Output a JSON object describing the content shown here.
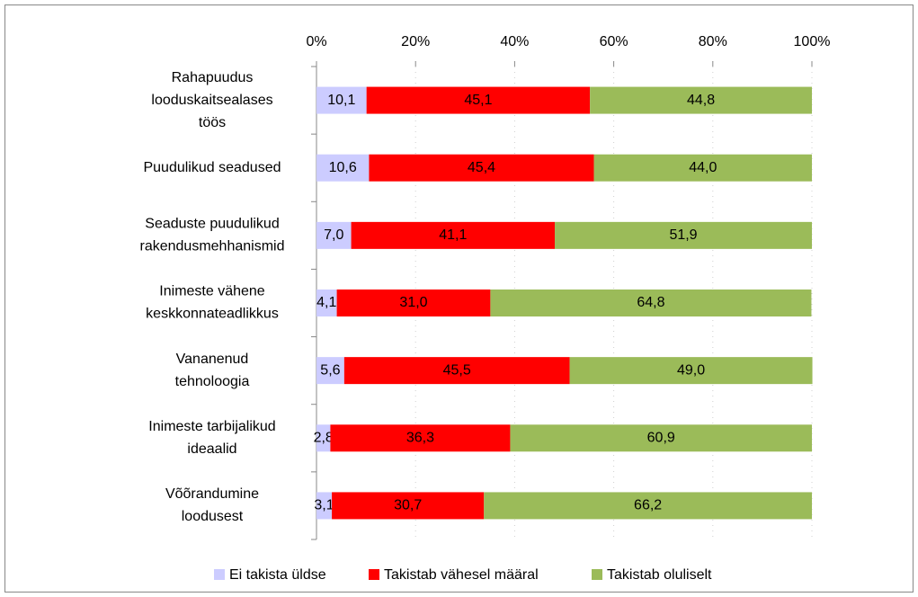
{
  "chart_data": {
    "type": "stacked-bar-horizontal",
    "categories": [
      [
        "Rahapuudus",
        "looduskaitsealases",
        "töös"
      ],
      [
        "Puudulikud seadused"
      ],
      [
        "Seaduste puudulikud",
        "rakendusmehhanismid"
      ],
      [
        "Inimeste vähene",
        "keskkonnateadlikkus"
      ],
      [
        "Vananenud",
        "tehnoloogia"
      ],
      [
        "Inimeste tarbijalikud",
        "ideaalid"
      ],
      [
        "Võõrandumine",
        "loodusest"
      ]
    ],
    "series": [
      {
        "name": "Ei takista üldse",
        "color": "#ccccff",
        "values": [
          10.1,
          10.6,
          7.0,
          4.1,
          5.6,
          2.8,
          3.1
        ],
        "value_labels": [
          "10,1",
          "10,6",
          "7,0",
          "4,1",
          "5,6",
          "2,8",
          "3,1"
        ]
      },
      {
        "name": "Takistab vähesel määral",
        "color": "#ff0000",
        "values": [
          45.1,
          45.4,
          41.1,
          31.0,
          45.5,
          36.3,
          30.7
        ],
        "value_labels": [
          "45,1",
          "45,4",
          "41,1",
          "31,0",
          "45,5",
          "36,3",
          "30,7"
        ]
      },
      {
        "name": "Takistab oluliselt",
        "color": "#9bbb59",
        "values": [
          44.8,
          44.0,
          51.9,
          64.8,
          49.0,
          60.9,
          66.2
        ],
        "value_labels": [
          "44,8",
          "44,0",
          "51,9",
          "64,8",
          "49,0",
          "60,9",
          "66,2"
        ]
      }
    ],
    "xlim": [
      0,
      100
    ],
    "xticks": [
      {
        "value": 0,
        "label": "0%"
      },
      {
        "value": 20,
        "label": "20%"
      },
      {
        "value": 40,
        "label": "40%"
      },
      {
        "value": 60,
        "label": "60%"
      },
      {
        "value": 80,
        "label": "80%"
      },
      {
        "value": 100,
        "label": "100%"
      }
    ],
    "grid": true,
    "legend": "bottom"
  }
}
